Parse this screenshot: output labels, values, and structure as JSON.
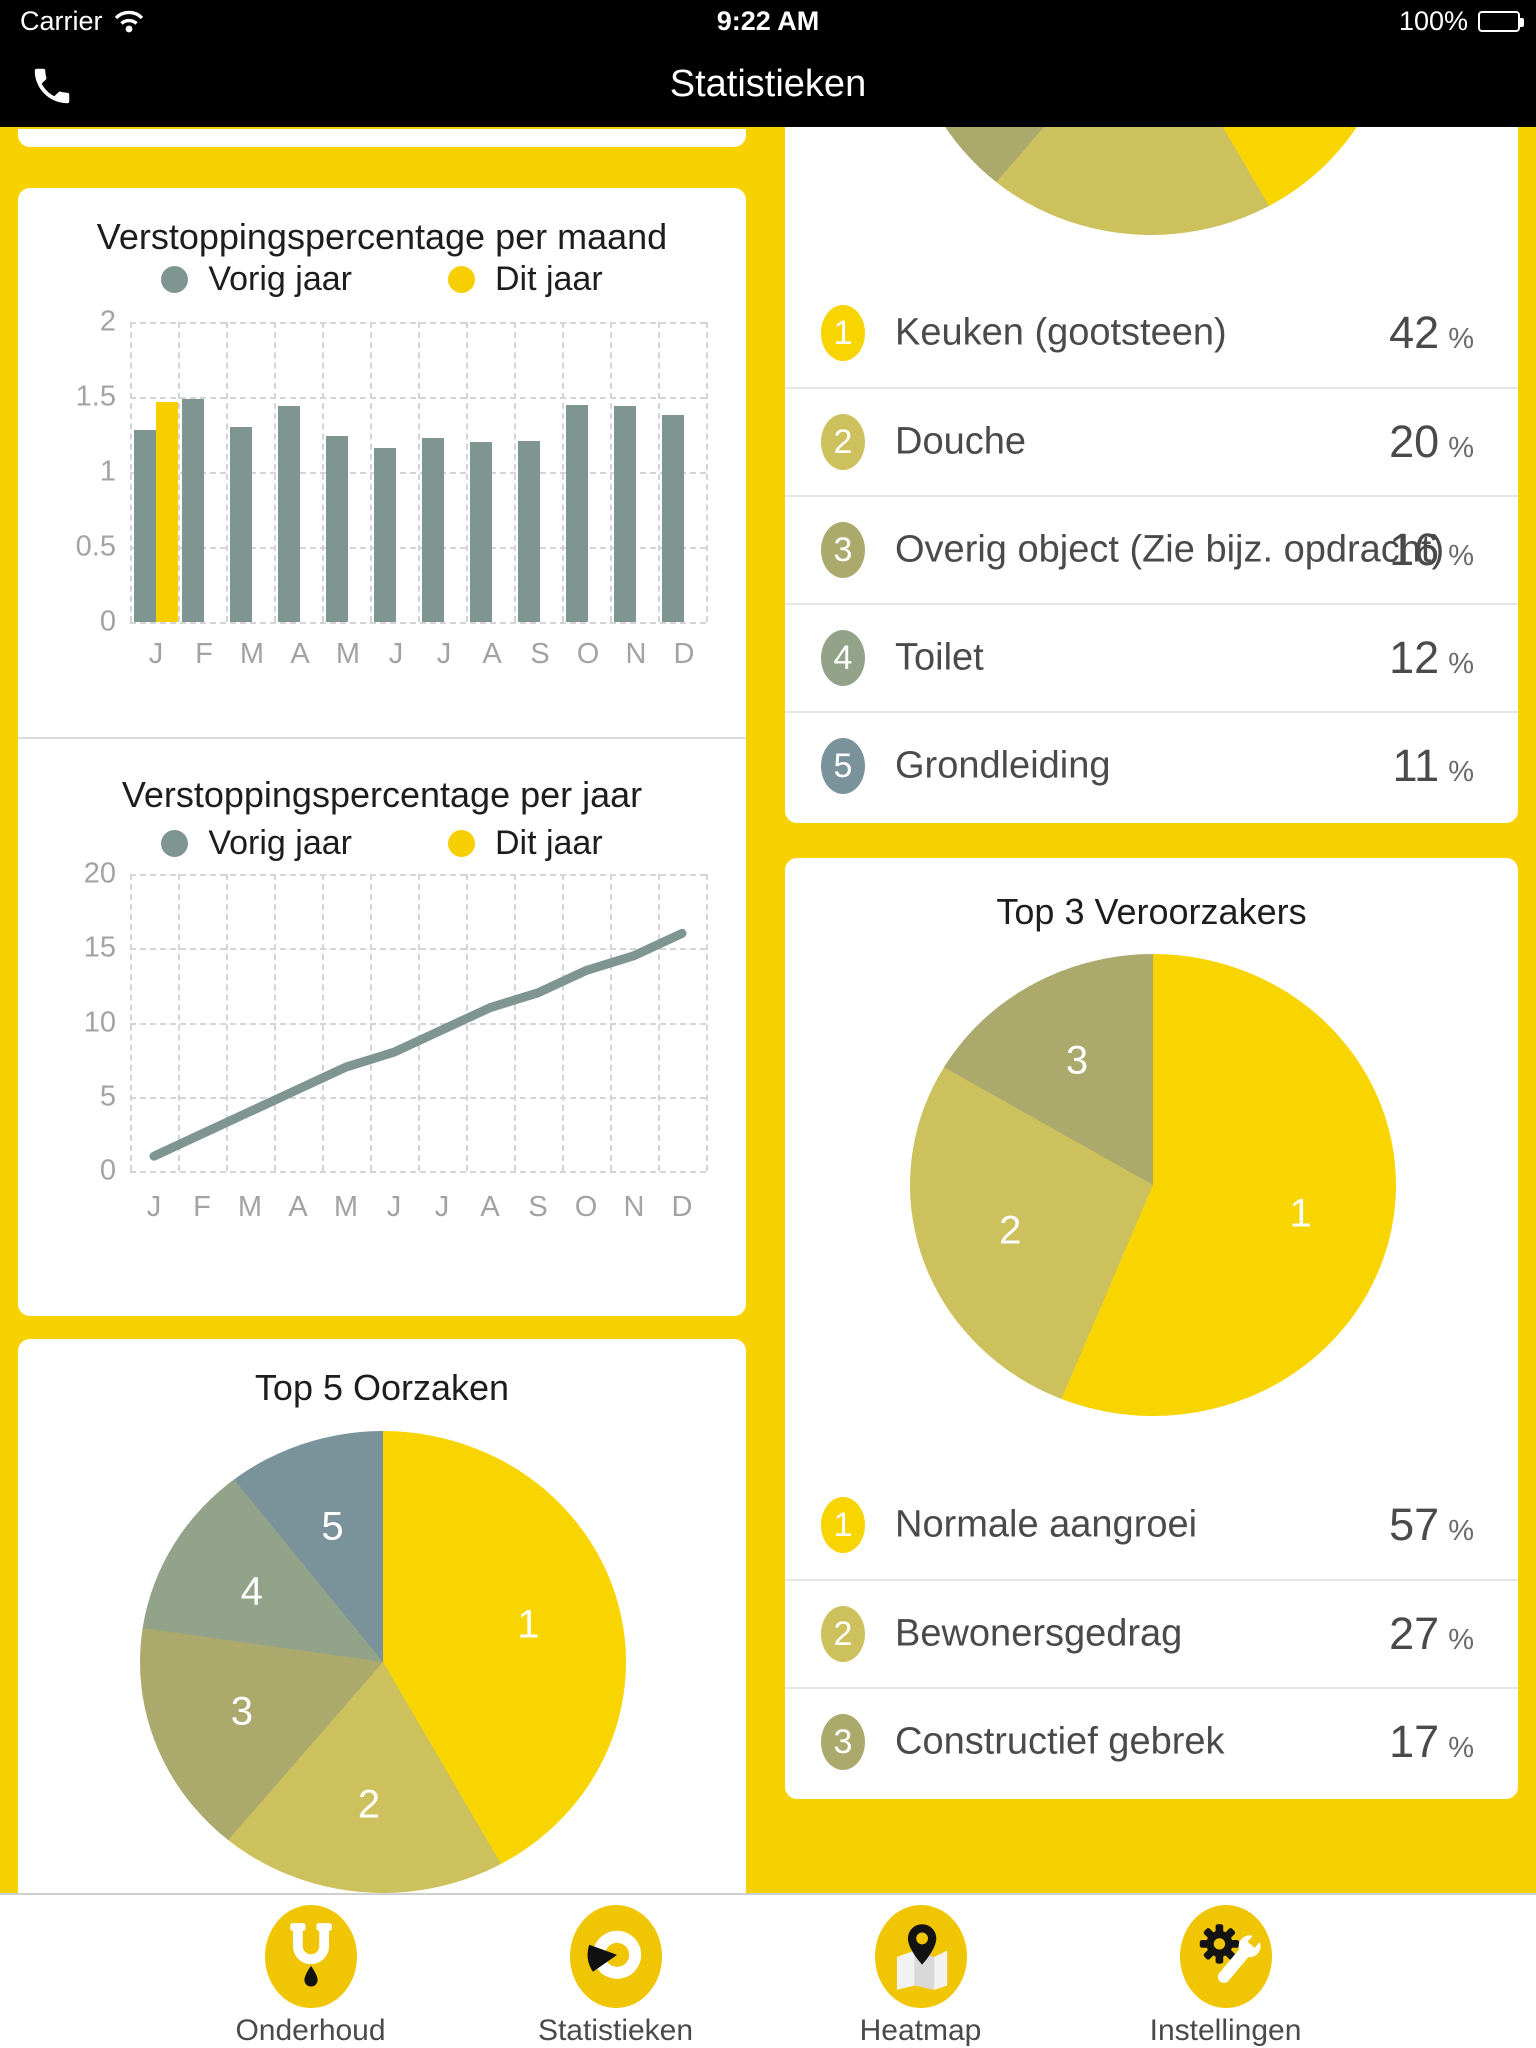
{
  "status_bar": {
    "carrier": "Carrier",
    "time": "9:22 AM",
    "battery_pct": "100%"
  },
  "nav_bar": {
    "title": "Statistieken"
  },
  "colors": {
    "background_yellow": "#F8D100",
    "chart_yellow": "#F7CE00",
    "chart_gray": "#7E9591",
    "pie_colors": [
      "#F8D400",
      "#CDC15E",
      "#ACA96C",
      "#93A389",
      "#7A939B"
    ],
    "icon_yellow": "#EFC504"
  },
  "monthly": {
    "title": "Verstoppingspercentage per maand",
    "legend": [
      "Vorig jaar",
      "Dit jaar"
    ],
    "months": [
      "J",
      "F",
      "M",
      "A",
      "M",
      "J",
      "J",
      "A",
      "S",
      "O",
      "N",
      "D"
    ],
    "yticks": [
      "2",
      "1.5",
      "1",
      "0.5",
      "0"
    ],
    "vorig": [
      1.28,
      1.49,
      1.3,
      1.44,
      1.24,
      1.16,
      1.23,
      1.2,
      1.21,
      1.45,
      1.44,
      1.38
    ],
    "dit": [
      1.47
    ]
  },
  "yearly": {
    "title": "Verstoppingspercentage per jaar",
    "legend": [
      "Vorig jaar",
      "Dit jaar"
    ],
    "months": [
      "J",
      "F",
      "M",
      "A",
      "M",
      "J",
      "J",
      "A",
      "S",
      "O",
      "N",
      "D"
    ],
    "yticks": [
      "20",
      "15",
      "10",
      "5",
      "0"
    ],
    "vorig": [
      1,
      2.5,
      4,
      5.5,
      7,
      8,
      9.5,
      11,
      12,
      13.5,
      14.5,
      16
    ]
  },
  "objects_card": {
    "slices": [
      42,
      20,
      16,
      12,
      11
    ],
    "rows": [
      {
        "rank": "1",
        "label": "Keuken (gootsteen)",
        "value": "42",
        "unit": "%"
      },
      {
        "rank": "2",
        "label": "Douche",
        "value": "20",
        "unit": "%"
      },
      {
        "rank": "3",
        "label": "Overig object (Zie bijz. opdracht)",
        "value": "16",
        "unit": "%"
      },
      {
        "rank": "4",
        "label": "Toilet",
        "value": "12",
        "unit": "%"
      },
      {
        "rank": "5",
        "label": "Grondleiding",
        "value": "11",
        "unit": "%"
      }
    ]
  },
  "top5_card": {
    "title": "Top 5 Oorzaken",
    "slices": [
      42,
      20,
      16,
      12,
      11
    ],
    "slice_labels": [
      "1",
      "2",
      "3",
      "4",
      "5"
    ]
  },
  "top3_card": {
    "title": "Top 3 Veroorzakers",
    "slices": [
      57,
      27,
      17
    ],
    "slice_labels": [
      "1",
      "2",
      "3"
    ],
    "rows": [
      {
        "rank": "1",
        "label": "Normale aangroei",
        "value": "57",
        "unit": "%"
      },
      {
        "rank": "2",
        "label": "Bewonersgedrag",
        "value": "27",
        "unit": "%"
      },
      {
        "rank": "3",
        "label": "Constructief gebrek",
        "value": "17",
        "unit": "%"
      }
    ]
  },
  "tab_bar": {
    "items": [
      {
        "label": "Onderhoud",
        "icon": "plunger-pipe-icon"
      },
      {
        "label": "Statistieken",
        "icon": "pie-chart-icon"
      },
      {
        "label": "Heatmap",
        "icon": "map-pin-icon"
      },
      {
        "label": "Instellingen",
        "icon": "gear-wrench-icon"
      }
    ]
  },
  "chart_data": [
    {
      "type": "bar",
      "title": "Verstoppingspercentage per maand",
      "categories": [
        "J",
        "F",
        "M",
        "A",
        "M",
        "J",
        "J",
        "A",
        "S",
        "O",
        "N",
        "D"
      ],
      "series": [
        {
          "name": "Vorig jaar",
          "values": [
            1.28,
            1.49,
            1.3,
            1.44,
            1.24,
            1.16,
            1.23,
            1.2,
            1.21,
            1.45,
            1.44,
            1.38
          ]
        },
        {
          "name": "Dit jaar",
          "values": [
            1.47,
            null,
            null,
            null,
            null,
            null,
            null,
            null,
            null,
            null,
            null,
            null
          ]
        }
      ],
      "xlabel": "",
      "ylabel": "",
      "ylim": [
        0,
        2
      ],
      "yticks": [
        0,
        0.5,
        1,
        1.5,
        2
      ],
      "grid": true,
      "legend_position": "top"
    },
    {
      "type": "line",
      "title": "Verstoppingspercentage per jaar",
      "categories": [
        "J",
        "F",
        "M",
        "A",
        "M",
        "J",
        "J",
        "A",
        "S",
        "O",
        "N",
        "D"
      ],
      "series": [
        {
          "name": "Vorig jaar",
          "values": [
            1,
            2.5,
            4,
            5.5,
            7,
            8,
            9.5,
            11,
            12,
            13.5,
            14.5,
            16
          ]
        },
        {
          "name": "Dit jaar",
          "values": []
        }
      ],
      "xlabel": "",
      "ylabel": "",
      "ylim": [
        0,
        20
      ],
      "yticks": [
        0,
        5,
        10,
        15,
        20
      ],
      "grid": true,
      "legend_position": "top"
    },
    {
      "type": "pie",
      "title": "",
      "labels": [
        "Keuken (gootsteen)",
        "Douche",
        "Overig object (Zie bijz. opdracht)",
        "Toilet",
        "Grondleiding"
      ],
      "values": [
        42,
        20,
        16,
        12,
        11
      ],
      "note": "pie partially cut off at top of screen; legend list shown below it"
    },
    {
      "type": "pie",
      "title": "Top 5 Oorzaken",
      "labels": [
        "1",
        "2",
        "3",
        "4",
        "5"
      ],
      "values": [
        42,
        20,
        16,
        12,
        11
      ]
    },
    {
      "type": "pie",
      "title": "Top 3 Veroorzakers",
      "labels": [
        "1",
        "2",
        "3"
      ],
      "values": [
        57,
        27,
        17
      ]
    }
  ]
}
